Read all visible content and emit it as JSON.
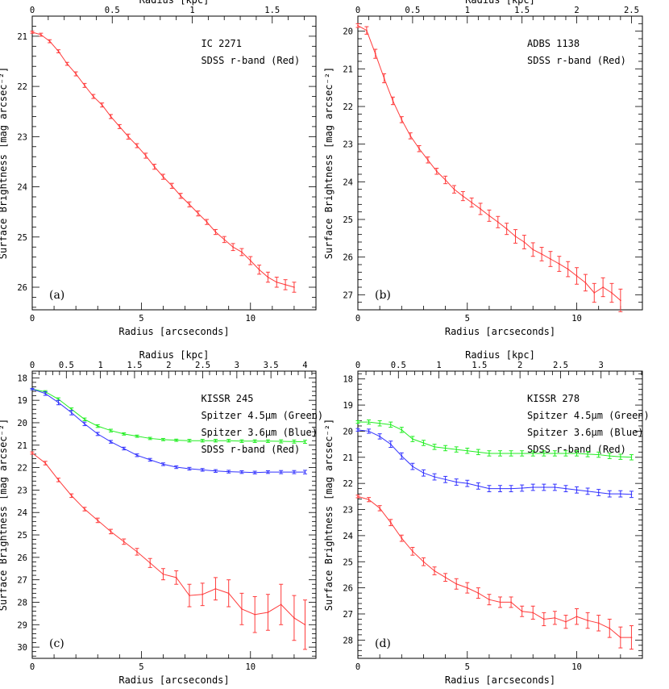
{
  "chart_data": [
    {
      "type": "line",
      "panel_label": "(a)",
      "annotations": [
        "IC 2271",
        "SDSS r-band (Red)"
      ],
      "xlabel": "Radius [arcseconds]",
      "xlabel_top": "Radius [kpc]",
      "ylabel": "Surface Brightness [mag arcsec⁻²]",
      "xlim": [
        0,
        13
      ],
      "ylim": [
        26.45,
        20.6
      ],
      "y_inverted": true,
      "xticks_major": [
        0,
        5,
        10
      ],
      "xticks_major_labels": [
        "0",
        "5",
        "10"
      ],
      "xticks_minor_step": 1,
      "yticks_major": [
        21,
        22,
        23,
        24,
        25,
        26
      ],
      "yticks_major_labels": [
        "21",
        "22",
        "23",
        "24",
        "25",
        "26"
      ],
      "yticks_minor_step": 0.2,
      "xticks_top": [
        0,
        0.5,
        1,
        1.5
      ],
      "xticks_top_labels": [
        "0",
        "0.5",
        "1",
        "1.5"
      ],
      "kpc_per_arcsec": 0.1364,
      "grid": false,
      "series": [
        {
          "color": "#ff3b3b",
          "x": [
            0,
            0.4,
            0.8,
            1.2,
            1.6,
            2.0,
            2.4,
            2.8,
            3.2,
            3.6,
            4.0,
            4.4,
            4.8,
            5.2,
            5.6,
            6.0,
            6.4,
            6.8,
            7.2,
            7.6,
            8.0,
            8.4,
            8.8,
            9.2,
            9.6,
            10.0,
            10.4,
            10.8,
            11.2,
            11.6,
            12.0
          ],
          "y": [
            20.92,
            20.97,
            21.1,
            21.3,
            21.55,
            21.75,
            21.98,
            22.2,
            22.37,
            22.6,
            22.8,
            23.0,
            23.18,
            23.38,
            23.6,
            23.8,
            23.98,
            24.18,
            24.35,
            24.53,
            24.7,
            24.9,
            25.05,
            25.2,
            25.3,
            25.47,
            25.65,
            25.8,
            25.9,
            25.95,
            26.0
          ],
          "err": [
            0.02,
            0.03,
            0.03,
            0.03,
            0.03,
            0.04,
            0.04,
            0.04,
            0.04,
            0.04,
            0.04,
            0.05,
            0.04,
            0.05,
            0.05,
            0.05,
            0.05,
            0.05,
            0.05,
            0.05,
            0.05,
            0.05,
            0.06,
            0.07,
            0.07,
            0.08,
            0.09,
            0.1,
            0.1,
            0.1,
            0.1
          ]
        }
      ]
    },
    {
      "type": "line",
      "panel_label": "(b)",
      "annotations": [
        "ADBS 1138",
        "SDSS r-band (Red)"
      ],
      "xlabel": "Radius [arcseconds]",
      "xlabel_top": "Radius [kpc]",
      "ylabel": "Surface Brightness [mag arcsec⁻²]",
      "xlim": [
        0,
        13
      ],
      "ylim": [
        27.4,
        19.6
      ],
      "y_inverted": true,
      "xticks_major": [
        0,
        5,
        10
      ],
      "xticks_major_labels": [
        "0",
        "5",
        "10"
      ],
      "xticks_minor_step": 1,
      "yticks_major": [
        20,
        21,
        22,
        23,
        24,
        25,
        26,
        27
      ],
      "yticks_major_labels": [
        "20",
        "21",
        "22",
        "23",
        "24",
        "25",
        "26",
        "27"
      ],
      "yticks_minor_step": 0.2,
      "xticks_top": [
        0,
        0.5,
        1,
        1.5,
        2,
        2.5
      ],
      "xticks_top_labels": [
        "0",
        "0.5",
        "1",
        "1.5",
        "2",
        "2.5"
      ],
      "kpc_per_arcsec": 0.2,
      "grid": false,
      "series": [
        {
          "color": "#ff3b3b",
          "x": [
            0,
            0.4,
            0.8,
            1.2,
            1.6,
            2.0,
            2.4,
            2.8,
            3.2,
            3.6,
            4.0,
            4.4,
            4.8,
            5.2,
            5.6,
            6.0,
            6.4,
            6.8,
            7.2,
            7.6,
            8.0,
            8.4,
            8.8,
            9.2,
            9.6,
            10.0,
            10.4,
            10.8,
            11.2,
            11.6,
            12.0
          ],
          "y": [
            19.85,
            19.98,
            20.6,
            21.25,
            21.85,
            22.35,
            22.78,
            23.12,
            23.42,
            23.72,
            23.95,
            24.2,
            24.38,
            24.55,
            24.72,
            24.9,
            25.07,
            25.25,
            25.45,
            25.6,
            25.8,
            25.92,
            26.05,
            26.18,
            26.32,
            26.5,
            26.68,
            26.95,
            26.8,
            26.95,
            27.15
          ],
          "err": [
            0.05,
            0.1,
            0.12,
            0.12,
            0.1,
            0.08,
            0.08,
            0.08,
            0.08,
            0.08,
            0.1,
            0.1,
            0.12,
            0.12,
            0.15,
            0.15,
            0.15,
            0.15,
            0.18,
            0.18,
            0.18,
            0.18,
            0.2,
            0.2,
            0.2,
            0.22,
            0.22,
            0.25,
            0.25,
            0.25,
            0.3
          ]
        }
      ]
    },
    {
      "type": "line",
      "panel_label": "(c)",
      "annotations": [
        "KISSR 245",
        "Spitzer 4.5µm (Green)",
        "Spitzer 3.6µm (Blue)",
        "SDSS r-band (Red)"
      ],
      "xlabel": "Radius [arcseconds]",
      "xlabel_top": "Radius [kpc]",
      "ylabel": "Surface Brightness [mag arcsec⁻²]",
      "xlim": [
        0,
        13
      ],
      "ylim": [
        30.5,
        17.7
      ],
      "y_inverted": true,
      "xticks_major": [
        0,
        5,
        10
      ],
      "xticks_major_labels": [
        "0",
        "5",
        "10"
      ],
      "xticks_minor_step": 1,
      "yticks_major": [
        18,
        19,
        20,
        21,
        22,
        23,
        24,
        25,
        26,
        27,
        28,
        29,
        30
      ],
      "yticks_major_labels": [
        "18",
        "19",
        "20",
        "21",
        "22",
        "23",
        "24",
        "25",
        "26",
        "27",
        "28",
        "29",
        "30"
      ],
      "yticks_minor_step": 0.2,
      "xticks_top": [
        0,
        0.5,
        1,
        1.5,
        2,
        2.5,
        3,
        3.5,
        4
      ],
      "xticks_top_labels": [
        "0",
        "0.5",
        "1",
        "1.5",
        "2",
        "2.5",
        "3",
        "3.5",
        "4"
      ],
      "kpc_per_arcsec": 0.32,
      "grid": false,
      "series": [
        {
          "color": "#22ee22",
          "x": [
            0,
            0.6,
            1.2,
            1.8,
            2.4,
            3.0,
            3.6,
            4.2,
            4.8,
            5.4,
            6.0,
            6.6,
            7.2,
            7.8,
            8.4,
            9.0,
            9.6,
            10.2,
            10.8,
            11.4,
            12.0,
            12.5
          ],
          "y": [
            18.5,
            18.62,
            18.95,
            19.4,
            19.85,
            20.15,
            20.35,
            20.5,
            20.6,
            20.7,
            20.75,
            20.78,
            20.8,
            20.8,
            20.8,
            20.8,
            20.82,
            20.82,
            20.82,
            20.83,
            20.84,
            20.85
          ],
          "err": [
            0.03,
            0.05,
            0.06,
            0.06,
            0.06,
            0.06,
            0.06,
            0.05,
            0.05,
            0.05,
            0.05,
            0.05,
            0.06,
            0.06,
            0.06,
            0.06,
            0.06,
            0.06,
            0.06,
            0.07,
            0.07,
            0.07
          ]
        },
        {
          "color": "#3333ff",
          "x": [
            0,
            0.6,
            1.2,
            1.8,
            2.4,
            3.0,
            3.6,
            4.2,
            4.8,
            5.4,
            6.0,
            6.6,
            7.2,
            7.8,
            8.4,
            9.0,
            9.6,
            10.2,
            10.8,
            11.4,
            12.0,
            12.5
          ],
          "y": [
            18.5,
            18.7,
            19.1,
            19.55,
            20.05,
            20.5,
            20.85,
            21.15,
            21.45,
            21.65,
            21.85,
            21.98,
            22.05,
            22.1,
            22.15,
            22.18,
            22.2,
            22.22,
            22.2,
            22.2,
            22.2,
            22.2
          ],
          "err": [
            0.03,
            0.08,
            0.1,
            0.1,
            0.08,
            0.07,
            0.06,
            0.06,
            0.06,
            0.06,
            0.06,
            0.06,
            0.06,
            0.06,
            0.06,
            0.06,
            0.06,
            0.06,
            0.06,
            0.07,
            0.07,
            0.08
          ]
        },
        {
          "color": "#ff3b3b",
          "x": [
            0,
            0.6,
            1.2,
            1.8,
            2.4,
            3.0,
            3.6,
            4.2,
            4.8,
            5.4,
            6.0,
            6.6,
            7.2,
            7.8,
            8.4,
            9.0,
            9.6,
            10.2,
            10.8,
            11.4,
            12.0,
            12.5
          ],
          "y": [
            21.35,
            21.8,
            22.55,
            23.25,
            23.85,
            24.35,
            24.85,
            25.3,
            25.75,
            26.25,
            26.75,
            26.9,
            27.7,
            27.65,
            27.4,
            27.6,
            28.3,
            28.55,
            28.45,
            28.1,
            28.7,
            29.0
          ],
          "err": [
            0.05,
            0.08,
            0.08,
            0.08,
            0.08,
            0.1,
            0.1,
            0.12,
            0.15,
            0.2,
            0.25,
            0.3,
            0.5,
            0.5,
            0.5,
            0.6,
            0.7,
            0.8,
            0.8,
            0.9,
            1.0,
            1.1
          ]
        }
      ]
    },
    {
      "type": "line",
      "panel_label": "(d)",
      "annotations": [
        "KISSR 278",
        "Spitzer 4.5µm (Green)",
        "Spitzer 3.6µm (Blue)",
        "SDSS r-band (Red)"
      ],
      "xlabel": "Radius [arcseconds]",
      "xlabel_top": "Radius [kpc]",
      "ylabel": "Surface Brightness [mag arcsec⁻²]",
      "xlim": [
        0,
        13
      ],
      "ylim": [
        28.7,
        17.7
      ],
      "y_inverted": true,
      "xticks_major": [
        0,
        5,
        10
      ],
      "xticks_major_labels": [
        "0",
        "5",
        "10"
      ],
      "xticks_minor_step": 1,
      "yticks_major": [
        18,
        19,
        20,
        21,
        22,
        23,
        24,
        25,
        26,
        27,
        28
      ],
      "yticks_major_labels": [
        "18",
        "19",
        "20",
        "21",
        "22",
        "23",
        "24",
        "25",
        "26",
        "27",
        "28"
      ],
      "yticks_minor_step": 0.2,
      "xticks_top": [
        0,
        0.5,
        1,
        1.5,
        2,
        2.5,
        3
      ],
      "xticks_top_labels": [
        "0",
        "0.5",
        "1",
        "1.5",
        "2",
        "2.5",
        "3"
      ],
      "kpc_per_arcsec": 0.27,
      "grid": false,
      "series": [
        {
          "color": "#22ee22",
          "x": [
            0,
            0.5,
            1.0,
            1.5,
            2.0,
            2.5,
            3.0,
            3.5,
            4.0,
            4.5,
            5.0,
            5.5,
            6.0,
            6.5,
            7.0,
            7.5,
            8.0,
            8.5,
            9.0,
            9.5,
            10.0,
            10.5,
            11.0,
            11.5,
            12.0,
            12.5
          ],
          "y": [
            19.65,
            19.65,
            19.7,
            19.75,
            19.95,
            20.3,
            20.45,
            20.6,
            20.65,
            20.7,
            20.75,
            20.8,
            20.85,
            20.85,
            20.85,
            20.85,
            20.85,
            20.85,
            20.85,
            20.85,
            20.85,
            20.88,
            20.9,
            20.95,
            20.98,
            21.0
          ],
          "err": [
            0.05,
            0.08,
            0.1,
            0.1,
            0.1,
            0.1,
            0.1,
            0.1,
            0.1,
            0.1,
            0.1,
            0.1,
            0.1,
            0.1,
            0.1,
            0.1,
            0.1,
            0.1,
            0.1,
            0.1,
            0.1,
            0.1,
            0.1,
            0.1,
            0.1,
            0.1
          ]
        },
        {
          "color": "#3333ff",
          "x": [
            0,
            0.5,
            1.0,
            1.5,
            2.0,
            2.5,
            3.0,
            3.5,
            4.0,
            4.5,
            5.0,
            5.5,
            6.0,
            6.5,
            7.0,
            7.5,
            8.0,
            8.5,
            9.0,
            9.5,
            10.0,
            10.5,
            11.0,
            11.5,
            12.0,
            12.5
          ],
          "y": [
            19.95,
            20.0,
            20.2,
            20.5,
            20.95,
            21.35,
            21.6,
            21.75,
            21.85,
            21.95,
            22.0,
            22.1,
            22.2,
            22.2,
            22.2,
            22.18,
            22.15,
            22.15,
            22.15,
            22.2,
            22.25,
            22.3,
            22.35,
            22.4,
            22.4,
            22.42
          ],
          "err": [
            0.05,
            0.08,
            0.1,
            0.12,
            0.12,
            0.12,
            0.12,
            0.12,
            0.12,
            0.12,
            0.12,
            0.12,
            0.12,
            0.12,
            0.12,
            0.12,
            0.12,
            0.12,
            0.12,
            0.12,
            0.12,
            0.12,
            0.12,
            0.12,
            0.12,
            0.12
          ]
        },
        {
          "color": "#ff3b3b",
          "x": [
            0,
            0.5,
            1.0,
            1.5,
            2.0,
            2.5,
            3.0,
            3.5,
            4.0,
            4.5,
            5.0,
            5.5,
            6.0,
            6.5,
            7.0,
            7.5,
            8.0,
            8.5,
            9.0,
            9.5,
            10.0,
            10.5,
            11.0,
            11.5,
            12.0,
            12.5
          ],
          "y": [
            22.5,
            22.62,
            22.95,
            23.5,
            24.1,
            24.6,
            25.0,
            25.35,
            25.6,
            25.85,
            26.0,
            26.2,
            26.45,
            26.55,
            26.55,
            26.9,
            26.95,
            27.2,
            27.15,
            27.3,
            27.1,
            27.25,
            27.35,
            27.55,
            27.9,
            27.9
          ],
          "err": [
            0.05,
            0.08,
            0.1,
            0.12,
            0.12,
            0.15,
            0.15,
            0.15,
            0.15,
            0.2,
            0.2,
            0.2,
            0.2,
            0.2,
            0.2,
            0.2,
            0.25,
            0.25,
            0.25,
            0.25,
            0.3,
            0.3,
            0.3,
            0.35,
            0.4,
            0.45
          ]
        }
      ]
    }
  ]
}
